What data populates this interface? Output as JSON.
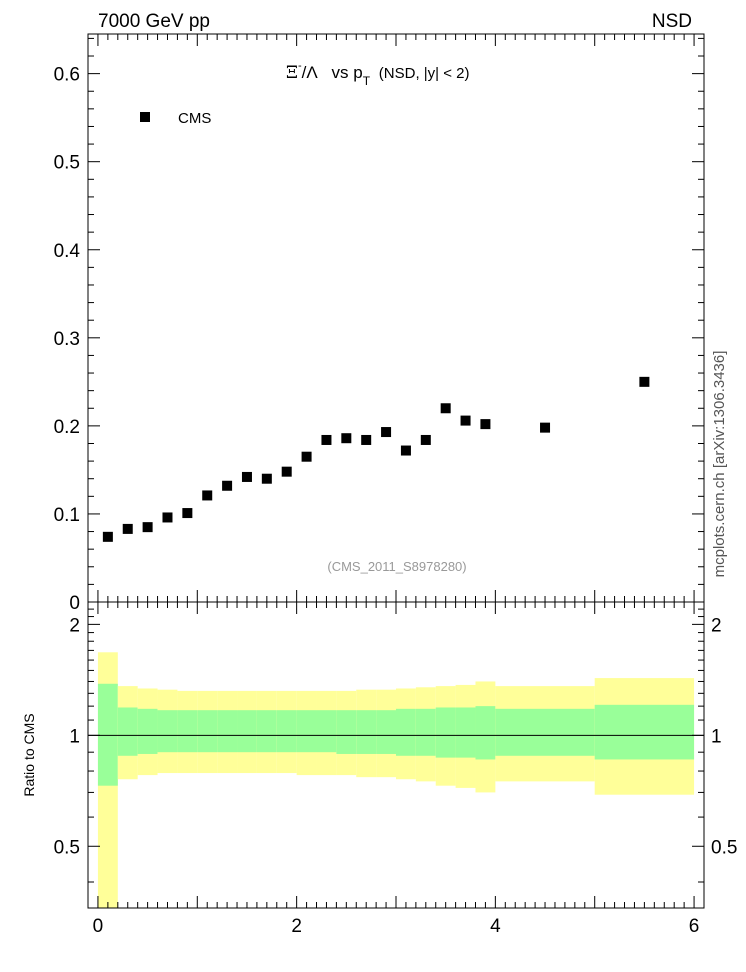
{
  "header": {
    "left": "7000 GeV pp",
    "right": "NSD"
  },
  "title": {
    "sym": "Ξ",
    "sup": "-",
    "slash": "/Λ",
    "vs": "vs p",
    "sub": "T",
    "tail": "(NSD, |y| < 2)"
  },
  "legend_label": "CMS",
  "analysis_tag": "(CMS_2011_S8978280)",
  "side_label": "mcplots.cern.ch [arXiv:1306.3436]",
  "ratio_ylabel": "Ratio to CMS",
  "colors": {
    "inner_band": "#99ff99",
    "outer_band": "#ffff99",
    "marker": "#000000"
  },
  "chart_data": [
    {
      "type": "scatter",
      "title": "Ξ-/Λ vs pT (NSD, |y| < 2)",
      "xlim": [
        -0.1,
        6.1
      ],
      "ylim": [
        0,
        0.645
      ],
      "yticks": [
        {
          "v": 0,
          "t": "0"
        },
        {
          "v": 0.1,
          "t": "0.1"
        },
        {
          "v": 0.2,
          "t": "0.2"
        },
        {
          "v": 0.3,
          "t": "0.3"
        },
        {
          "v": 0.4,
          "t": "0.4"
        },
        {
          "v": 0.5,
          "t": "0.5"
        },
        {
          "v": 0.6,
          "t": "0.6"
        }
      ],
      "legend": [
        "CMS"
      ],
      "series": [
        {
          "name": "CMS",
          "x": [
            0.1,
            0.3,
            0.5,
            0.7,
            0.9,
            1.1,
            1.3,
            1.5,
            1.7,
            1.9,
            2.1,
            2.3,
            2.5,
            2.7,
            2.9,
            3.1,
            3.3,
            3.5,
            3.7,
            3.9,
            4.5,
            5.5
          ],
          "y": [
            0.074,
            0.083,
            0.085,
            0.096,
            0.101,
            0.121,
            0.132,
            0.142,
            0.14,
            0.148,
            0.165,
            0.184,
            0.186,
            0.184,
            0.193,
            0.172,
            0.184,
            0.22,
            0.206,
            0.202,
            0.198,
            0.25
          ]
        }
      ]
    },
    {
      "type": "area",
      "ylabel": "Ratio to CMS",
      "xlim": [
        -0.1,
        6.1
      ],
      "ylim": [
        0.34,
        2.3
      ],
      "xticks": [
        {
          "v": 0,
          "t": "0"
        },
        {
          "v": 2,
          "t": "2"
        },
        {
          "v": 4,
          "t": "4"
        },
        {
          "v": 6,
          "t": "6"
        }
      ],
      "yticks": [
        {
          "v": 0.5,
          "t": "0.5"
        },
        {
          "v": 1,
          "t": "1"
        },
        {
          "v": 2,
          "t": "2"
        }
      ],
      "reference_line": 1,
      "bins": [
        {
          "x0": 0.0,
          "x1": 0.2,
          "i_lo": 0.73,
          "i_hi": 1.38,
          "o_lo": 0.34,
          "o_hi": 1.68
        },
        {
          "x0": 0.2,
          "x1": 0.4,
          "i_lo": 0.88,
          "i_hi": 1.19,
          "o_lo": 0.76,
          "o_hi": 1.36
        },
        {
          "x0": 0.4,
          "x1": 0.6,
          "i_lo": 0.89,
          "i_hi": 1.18,
          "o_lo": 0.78,
          "o_hi": 1.34
        },
        {
          "x0": 0.6,
          "x1": 0.8,
          "i_lo": 0.9,
          "i_hi": 1.17,
          "o_lo": 0.79,
          "o_hi": 1.33
        },
        {
          "x0": 0.8,
          "x1": 1.0,
          "i_lo": 0.9,
          "i_hi": 1.17,
          "o_lo": 0.79,
          "o_hi": 1.32
        },
        {
          "x0": 1.0,
          "x1": 1.2,
          "i_lo": 0.9,
          "i_hi": 1.17,
          "o_lo": 0.79,
          "o_hi": 1.32
        },
        {
          "x0": 1.2,
          "x1": 1.4,
          "i_lo": 0.9,
          "i_hi": 1.17,
          "o_lo": 0.79,
          "o_hi": 1.32
        },
        {
          "x0": 1.4,
          "x1": 1.6,
          "i_lo": 0.9,
          "i_hi": 1.17,
          "o_lo": 0.79,
          "o_hi": 1.32
        },
        {
          "x0": 1.6,
          "x1": 1.8,
          "i_lo": 0.9,
          "i_hi": 1.17,
          "o_lo": 0.79,
          "o_hi": 1.32
        },
        {
          "x0": 1.8,
          "x1": 2.0,
          "i_lo": 0.9,
          "i_hi": 1.17,
          "o_lo": 0.79,
          "o_hi": 1.32
        },
        {
          "x0": 2.0,
          "x1": 2.2,
          "i_lo": 0.9,
          "i_hi": 1.17,
          "o_lo": 0.78,
          "o_hi": 1.32
        },
        {
          "x0": 2.2,
          "x1": 2.4,
          "i_lo": 0.9,
          "i_hi": 1.17,
          "o_lo": 0.78,
          "o_hi": 1.32
        },
        {
          "x0": 2.4,
          "x1": 2.6,
          "i_lo": 0.89,
          "i_hi": 1.17,
          "o_lo": 0.78,
          "o_hi": 1.32
        },
        {
          "x0": 2.6,
          "x1": 2.8,
          "i_lo": 0.89,
          "i_hi": 1.17,
          "o_lo": 0.77,
          "o_hi": 1.33
        },
        {
          "x0": 2.8,
          "x1": 3.0,
          "i_lo": 0.89,
          "i_hi": 1.17,
          "o_lo": 0.77,
          "o_hi": 1.33
        },
        {
          "x0": 3.0,
          "x1": 3.2,
          "i_lo": 0.88,
          "i_hi": 1.18,
          "o_lo": 0.76,
          "o_hi": 1.34
        },
        {
          "x0": 3.2,
          "x1": 3.4,
          "i_lo": 0.88,
          "i_hi": 1.18,
          "o_lo": 0.75,
          "o_hi": 1.35
        },
        {
          "x0": 3.4,
          "x1": 3.6,
          "i_lo": 0.87,
          "i_hi": 1.19,
          "o_lo": 0.73,
          "o_hi": 1.36
        },
        {
          "x0": 3.6,
          "x1": 3.8,
          "i_lo": 0.87,
          "i_hi": 1.19,
          "o_lo": 0.72,
          "o_hi": 1.37
        },
        {
          "x0": 3.8,
          "x1": 4.0,
          "i_lo": 0.86,
          "i_hi": 1.2,
          "o_lo": 0.7,
          "o_hi": 1.4
        },
        {
          "x0": 4.0,
          "x1": 5.0,
          "i_lo": 0.88,
          "i_hi": 1.18,
          "o_lo": 0.75,
          "o_hi": 1.36
        },
        {
          "x0": 5.0,
          "x1": 6.0,
          "i_lo": 0.86,
          "i_hi": 1.21,
          "o_lo": 0.69,
          "o_hi": 1.43
        }
      ]
    }
  ]
}
